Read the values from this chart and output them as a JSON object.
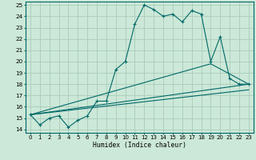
{
  "title": "",
  "xlabel": "Humidex (Indice chaleur)",
  "bg_color": "#cce8d8",
  "grid_color": "#aaccbb",
  "line_color": "#006868",
  "xlim": [
    -0.5,
    23.5
  ],
  "ylim": [
    13.7,
    25.3
  ],
  "xticks": [
    0,
    1,
    2,
    3,
    4,
    5,
    6,
    7,
    8,
    9,
    10,
    11,
    12,
    13,
    14,
    15,
    16,
    17,
    18,
    19,
    20,
    21,
    22,
    23
  ],
  "yticks": [
    14,
    15,
    16,
    17,
    18,
    19,
    20,
    21,
    22,
    23,
    24,
    25
  ],
  "main_line": {
    "x": [
      0,
      1,
      2,
      3,
      4,
      5,
      6,
      7,
      8,
      9,
      10,
      11,
      12,
      13,
      14,
      15,
      16,
      17,
      18,
      19,
      20,
      21,
      22,
      23
    ],
    "y": [
      15.3,
      14.4,
      15.0,
      15.2,
      14.2,
      14.8,
      15.2,
      16.5,
      16.5,
      19.3,
      20.0,
      23.3,
      25.0,
      24.6,
      24.0,
      24.2,
      23.5,
      24.5,
      24.2,
      20.0,
      22.2,
      18.5,
      18.0,
      18.0
    ]
  },
  "line_straight1": {
    "x": [
      0,
      23
    ],
    "y": [
      15.3,
      18.0
    ]
  },
  "line_straight2": {
    "x": [
      0,
      19,
      23
    ],
    "y": [
      15.3,
      19.8,
      18.0
    ]
  },
  "line_straight3": {
    "x": [
      0,
      23
    ],
    "y": [
      15.3,
      17.5
    ]
  }
}
